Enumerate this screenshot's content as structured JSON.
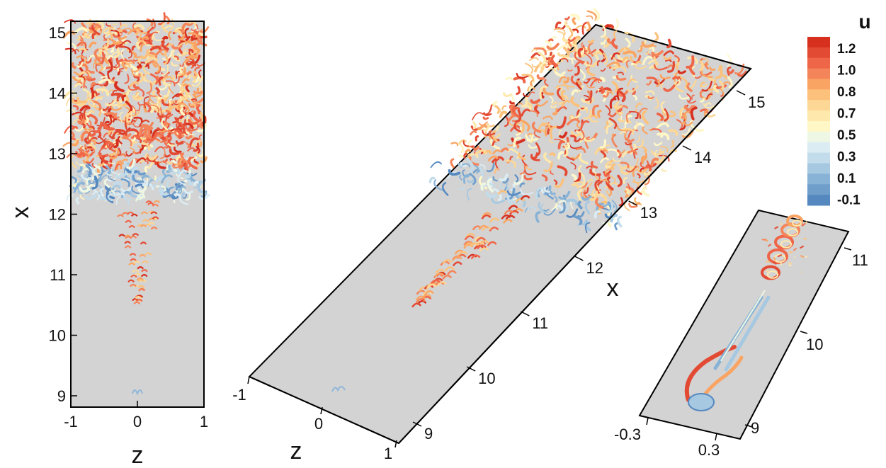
{
  "chart_data": [
    {
      "type": "other",
      "view": "top",
      "xlabel": "z",
      "ylabel": "x",
      "xlim": [
        -1,
        1
      ],
      "ylim": [
        8.8,
        15.2
      ],
      "xticks": [
        "-1",
        "0",
        "1"
      ],
      "yticks": [
        "9",
        "10",
        "11",
        "12",
        "13",
        "14",
        "15"
      ]
    },
    {
      "type": "other",
      "view": "perspective",
      "xlabel": "x",
      "zlabel": "z",
      "xticks": [
        "9",
        "10",
        "11",
        "12",
        "13",
        "14",
        "15"
      ],
      "zticks": [
        "-1",
        "0",
        "1"
      ]
    },
    {
      "type": "other",
      "view": "perspective-zoom",
      "xticks": [
        "9",
        "10",
        "11"
      ],
      "zticks": [
        "-0.3",
        "0.3"
      ]
    }
  ],
  "colorbar": {
    "title": "u",
    "ticks": [
      "1.2",
      "1.0",
      "0.8",
      "0.7",
      "0.5",
      "0.3",
      "0.1",
      "-0.1"
    ],
    "colors": [
      "#d7301f",
      "#e34a33",
      "#ef6548",
      "#f4845a",
      "#f9a463",
      "#fcc17b",
      "#fdd795",
      "#fee8ab",
      "#fff7c6",
      "#eef7e3",
      "#dbecf3",
      "#c2dceb",
      "#a6c8e1",
      "#89b3d6",
      "#6f9ecb",
      "#5688c0"
    ]
  }
}
